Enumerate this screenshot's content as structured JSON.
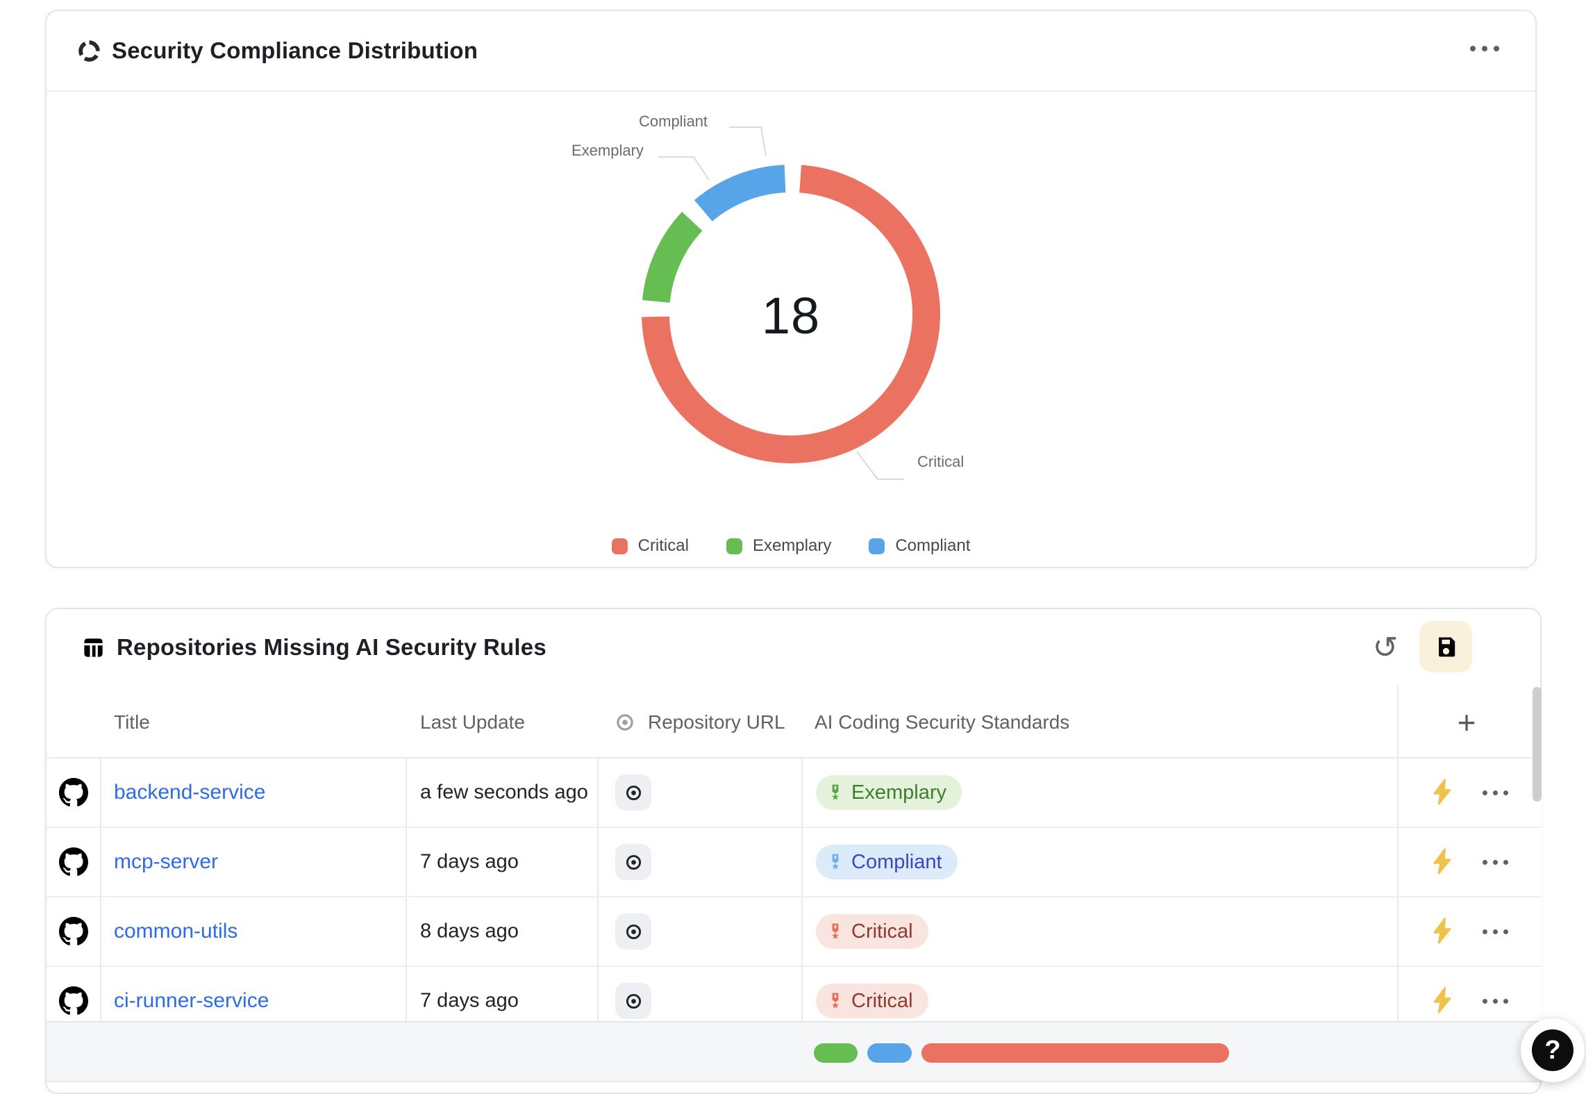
{
  "compliance_card": {
    "title": "Security Compliance Distribution",
    "center_value": "18",
    "callouts": {
      "compliant": "Compliant",
      "exemplary": "Exemplary",
      "critical": "Critical"
    }
  },
  "chart_data": {
    "type": "donut",
    "title": "Security Compliance Distribution",
    "categories": [
      "Critical",
      "Exemplary",
      "Compliant"
    ],
    "values": [
      14,
      2,
      2
    ],
    "colors": [
      "#EB7260",
      "#66BE52",
      "#57A4E8"
    ],
    "center_label": "18",
    "legend_position": "bottom",
    "legend": [
      "Critical",
      "Exemplary",
      "Compliant"
    ]
  },
  "repos_card": {
    "title": "Repositories Missing AI Security Rules",
    "toolbar": {
      "undo_glyph": "↺",
      "save_icon": "floppy-disk-icon"
    },
    "table": {
      "columns": [
        "Title",
        "Last Update",
        "Repository URL",
        "AI Coding Security Standards"
      ],
      "add_column_label": "+",
      "rows": [
        {
          "title": "backend-service",
          "last_update": "a few seconds ago",
          "standard": "Exemplary"
        },
        {
          "title": "mcp-server",
          "last_update": "7 days ago",
          "standard": "Compliant"
        },
        {
          "title": "common-utils",
          "last_update": "8 days ago",
          "standard": "Critical"
        },
        {
          "title": "ci-runner-service",
          "last_update": "7 days ago",
          "standard": "Critical"
        }
      ]
    },
    "badge_styles": {
      "Exemplary": {
        "bg": "#E4F2DC",
        "text": "#3F7D2F",
        "icon": "#58A846"
      },
      "Compliant": {
        "bg": "#DCEBFA",
        "text": "#3B46C4",
        "icon": "#6FAEE8"
      },
      "Critical": {
        "bg": "#FAE4DF",
        "text": "#8F3A2E",
        "icon": "#E8705A"
      }
    },
    "link_color": "#2D6CE6",
    "bolt_color": "#F0C24B",
    "summary_bar": {
      "order": [
        "Exemplary",
        "Compliant",
        "Critical"
      ]
    }
  },
  "help_button": {
    "label": "?"
  }
}
